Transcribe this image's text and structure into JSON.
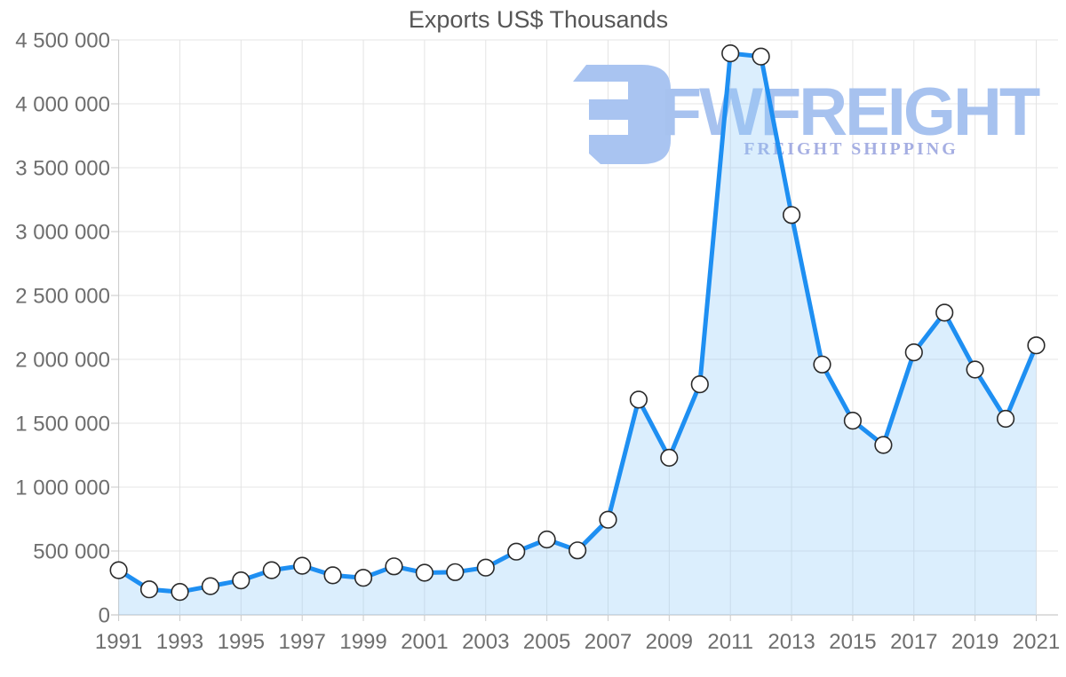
{
  "chart_data": {
    "type": "area",
    "title": "Exports US$ Thousands",
    "xlabel": "",
    "ylabel": "",
    "x": [
      1991,
      1992,
      1993,
      1994,
      1995,
      1996,
      1997,
      1998,
      1999,
      2000,
      2001,
      2002,
      2003,
      2004,
      2005,
      2006,
      2007,
      2008,
      2009,
      2010,
      2011,
      2012,
      2013,
      2014,
      2015,
      2016,
      2017,
      2018,
      2019,
      2020,
      2021
    ],
    "values": [
      350000,
      200000,
      180000,
      225000,
      270000,
      350000,
      385000,
      310000,
      290000,
      380000,
      330000,
      335000,
      370000,
      495000,
      590000,
      505000,
      745000,
      1685000,
      1230000,
      1805000,
      4395000,
      4370000,
      3130000,
      1960000,
      1520000,
      1330000,
      2055000,
      2365000,
      1920000,
      1535000,
      2110000
    ],
    "ylim": [
      0,
      4500000
    ],
    "xlim": [
      1991,
      2021
    ],
    "grid": true,
    "legend": false,
    "marker": "circle-white",
    "ytick_values": [
      0,
      500000,
      1000000,
      1500000,
      2000000,
      2500000,
      3000000,
      3500000,
      4000000,
      4500000
    ],
    "ytick_labels": [
      "0",
      "500 000",
      "1 000 000",
      "1 500 000",
      "2 000 000",
      "2 500 000",
      "3 000 000",
      "3 500 000",
      "4 000 000",
      "4 500 000"
    ],
    "xtick_values": [
      1991,
      1993,
      1995,
      1997,
      1999,
      2001,
      2003,
      2005,
      2007,
      2009,
      2011,
      2013,
      2015,
      2017,
      2019,
      2021
    ],
    "xtick_labels": [
      "1991",
      "1993",
      "1995",
      "1997",
      "1999",
      "2001",
      "2003",
      "2005",
      "2007",
      "2009",
      "2011",
      "2013",
      "2015",
      "2017",
      "2019",
      "2021"
    ]
  },
  "watermark": {
    "brand": "FWFREIGHT",
    "tagline": "FREIGHT SHIPPING"
  },
  "colors": {
    "line": "#1e8ff2",
    "area_fill": "#90caf9",
    "area_opacity": "0.32",
    "marker_fill": "#ffffff",
    "marker_stroke": "#2a2a2a",
    "grid": "#e4e4e4",
    "axis": "#c9c9c9",
    "tick_text": "#6e6e6e",
    "title_text": "#565656",
    "watermark_logo": "#a9c4f1",
    "watermark_brand": "#a7c2ef",
    "watermark_tagline": "#a5aee2"
  }
}
